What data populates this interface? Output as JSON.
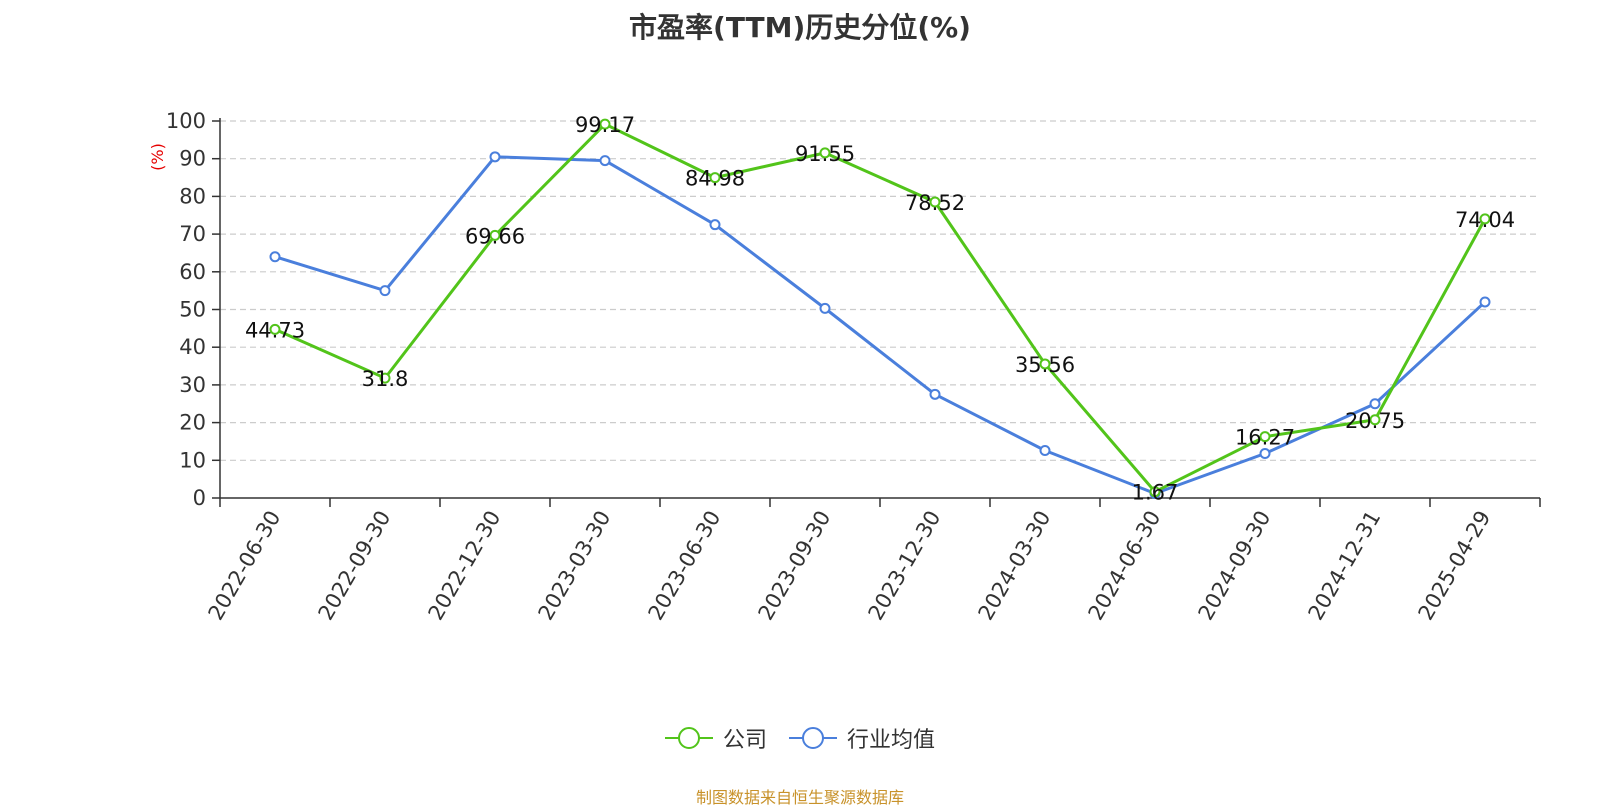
{
  "chart_data": {
    "type": "line",
    "title": "市盈率(TTM)历史分位(%)",
    "ylabel": "(%)",
    "xlabel": "",
    "ylim": [
      0,
      100
    ],
    "yticks": [
      0,
      10,
      20,
      30,
      40,
      50,
      60,
      70,
      80,
      90,
      100
    ],
    "categories": [
      "2022-06-30",
      "2022-09-30",
      "2022-12-30",
      "2023-03-30",
      "2023-06-30",
      "2023-09-30",
      "2023-12-30",
      "2024-03-30",
      "2024-06-30",
      "2024-09-30",
      "2024-12-31",
      "2025-04-29"
    ],
    "series": [
      {
        "name": "公司",
        "color": "#52c41a",
        "values": [
          44.73,
          31.8,
          69.66,
          99.17,
          84.98,
          91.55,
          78.52,
          35.56,
          1.67,
          16.27,
          20.75,
          74.04
        ],
        "labels_shown": true
      },
      {
        "name": "行业均值",
        "color": "#4a7fdc",
        "values": [
          64,
          55,
          90.5,
          89.5,
          72.5,
          50.3,
          27.5,
          12.6,
          1.2,
          11.8,
          25,
          52
        ],
        "labels_shown": false
      }
    ],
    "grid": true,
    "legend_position": "bottom",
    "source": "制图数据来自恒生聚源数据库"
  }
}
